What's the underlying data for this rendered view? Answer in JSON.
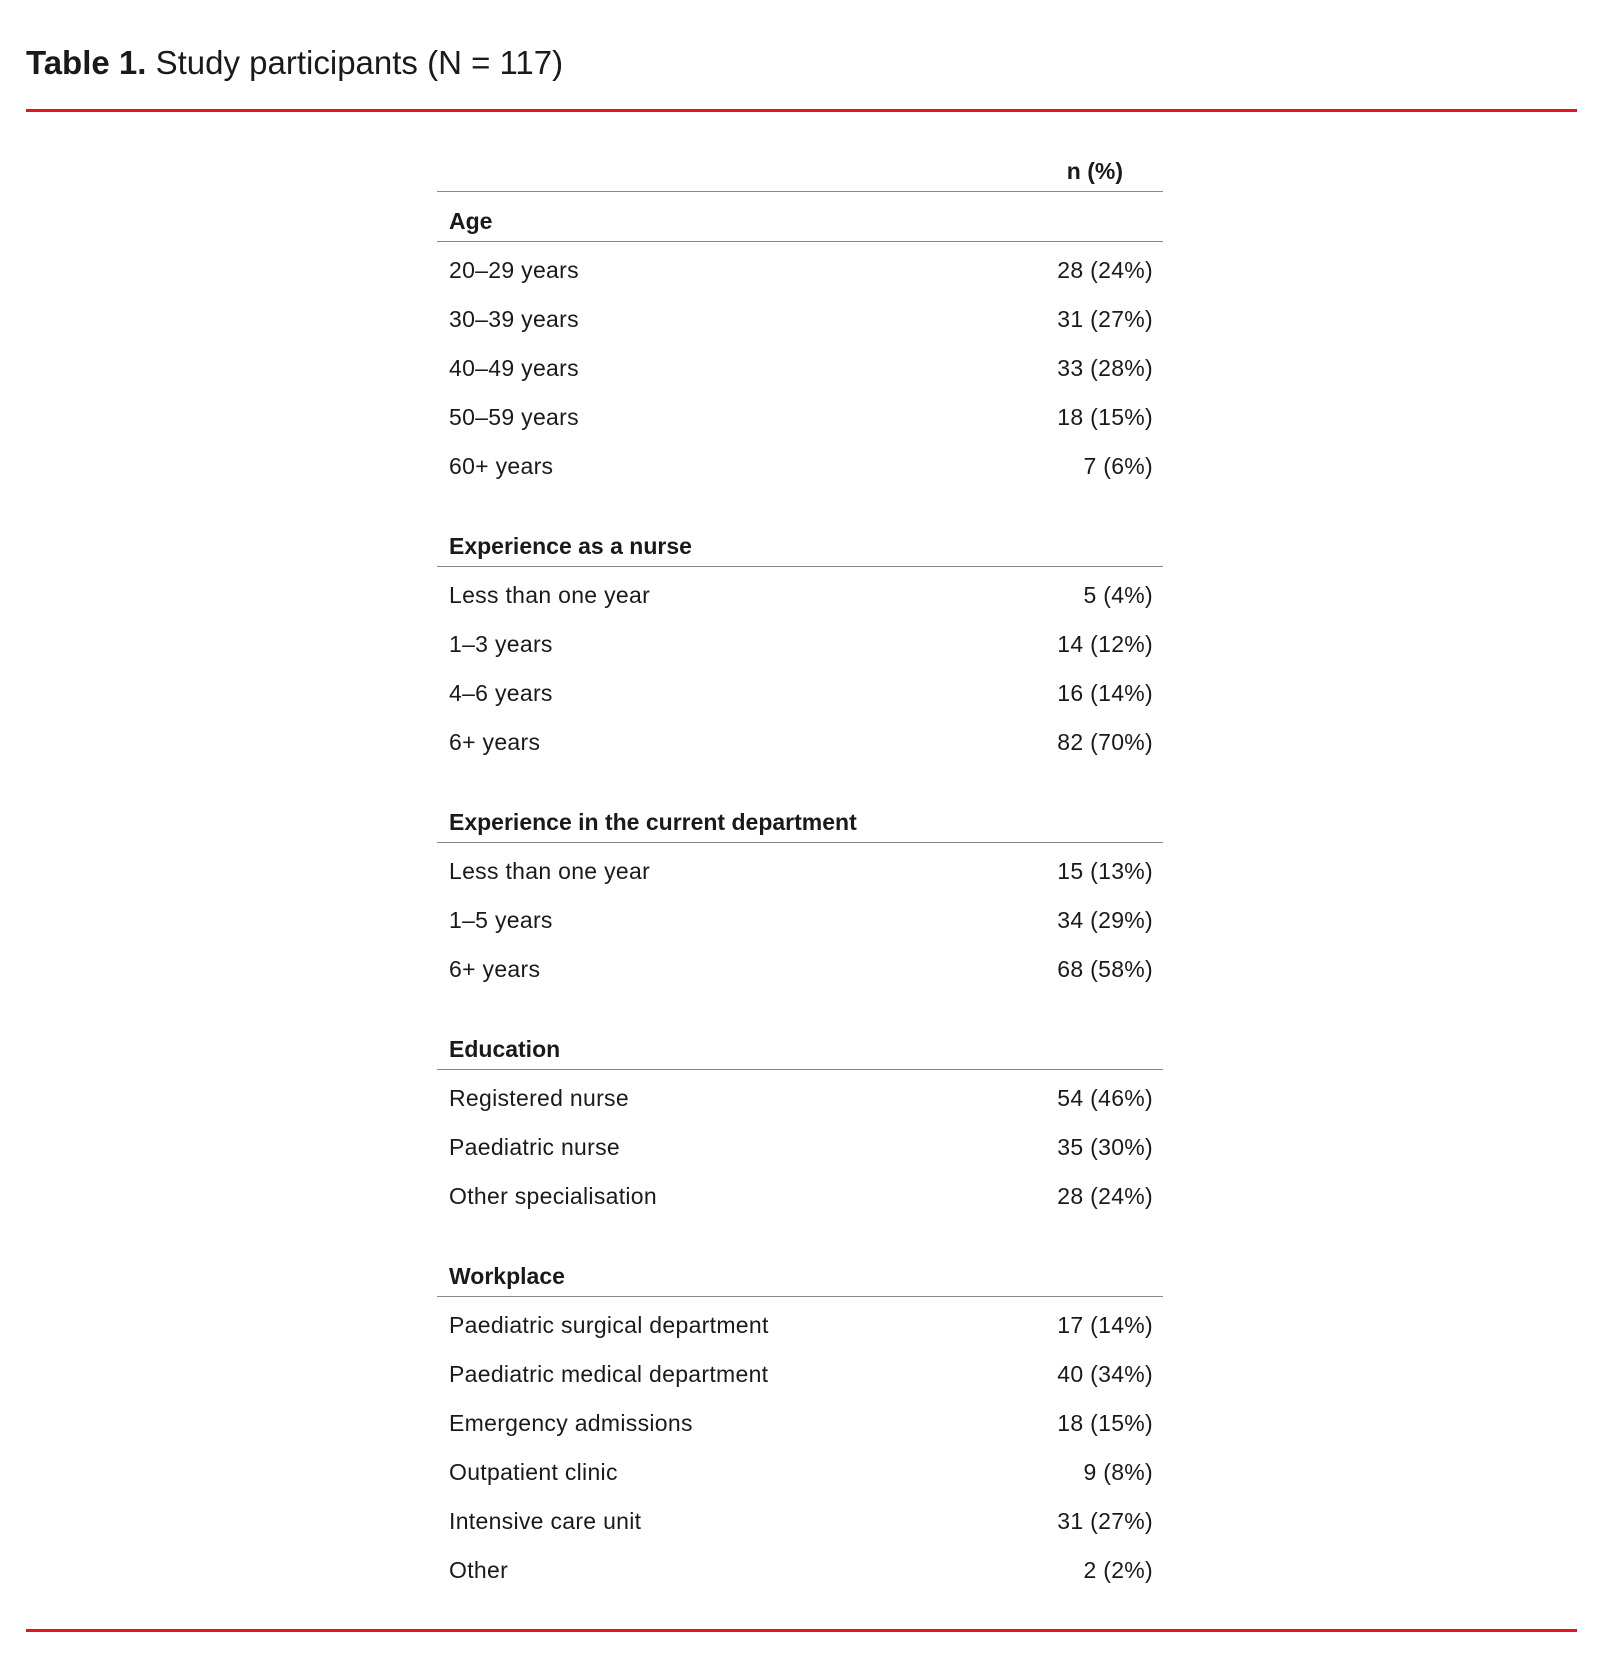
{
  "title": {
    "label": "Table 1.",
    "text": "Study participants (N = 117)"
  },
  "column_header": "n (%)",
  "accent_color": "#e3151f",
  "sections": [
    {
      "heading": "Age",
      "rows": [
        {
          "label": "20–29 years",
          "value": "28 (24%)"
        },
        {
          "label": "30–39 years",
          "value": "31 (27%)"
        },
        {
          "label": "40–49 years",
          "value": "33 (28%)"
        },
        {
          "label": "50–59 years",
          "value": "18 (15%)"
        },
        {
          "label": "60+ years",
          "value": "7 (6%)"
        }
      ]
    },
    {
      "heading": "Experience as a nurse",
      "rows": [
        {
          "label": "Less than one year",
          "value": "5 (4%)"
        },
        {
          "label": "1–3 years",
          "value": "14 (12%)"
        },
        {
          "label": "4–6 years",
          "value": "16 (14%)"
        },
        {
          "label": "6+ years",
          "value": "82 (70%)"
        }
      ]
    },
    {
      "heading": "Experience in the current department",
      "rows": [
        {
          "label": "Less than one year",
          "value": "15 (13%)"
        },
        {
          "label": "1–5 years",
          "value": "34 (29%)"
        },
        {
          "label": "6+ years",
          "value": "68 (58%)"
        }
      ]
    },
    {
      "heading": "Education",
      "rows": [
        {
          "label": "Registered nurse",
          "value": "54 (46%)"
        },
        {
          "label": "Paediatric nurse",
          "value": "35 (30%)"
        },
        {
          "label": "Other specialisation",
          "value": "28 (24%)"
        }
      ]
    },
    {
      "heading": "Workplace",
      "rows": [
        {
          "label": "Paediatric surgical department",
          "value": "17 (14%)"
        },
        {
          "label": "Paediatric medical department",
          "value": "40 (34%)"
        },
        {
          "label": "Emergency admissions",
          "value": "18 (15%)"
        },
        {
          "label": "Outpatient clinic",
          "value": "9 (8%)"
        },
        {
          "label": "Intensive care unit",
          "value": "31 (27%)"
        },
        {
          "label": "Other",
          "value": "2 (2%)"
        }
      ]
    }
  ]
}
